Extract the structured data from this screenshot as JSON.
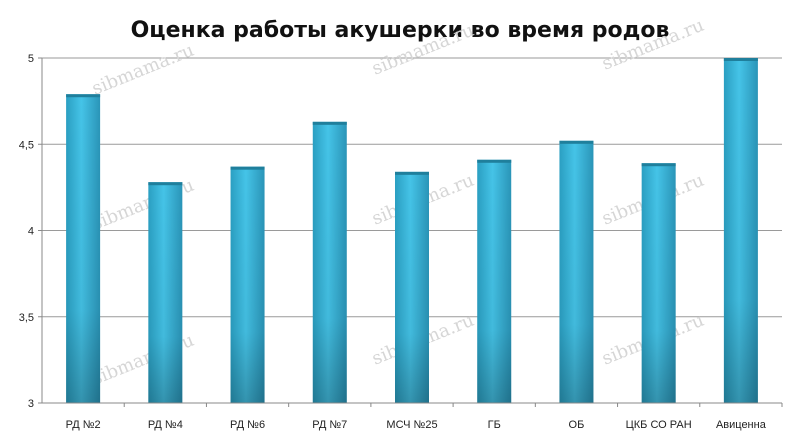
{
  "chart_data": {
    "type": "bar",
    "title": "Оценка работы акушерки во время родов",
    "xlabel": "",
    "ylabel": "",
    "categories": [
      "РД №2",
      "РД №4",
      "РД №6",
      "РД №7",
      "МСЧ №25",
      "ГБ",
      "ОБ",
      "ЦКБ СО РАН",
      "Авиценна"
    ],
    "values": [
      4.79,
      4.28,
      4.37,
      4.63,
      4.34,
      4.41,
      4.52,
      4.39,
      5.0
    ],
    "ylim": [
      3,
      5
    ],
    "yticks": [
      "3",
      "3,5",
      "4",
      "4,5",
      "5"
    ],
    "grid": true,
    "legend": "none",
    "bar_color": "#36b6dc",
    "bar_color_dark": "#1f7f9c"
  },
  "watermark": "sibmama.ru"
}
